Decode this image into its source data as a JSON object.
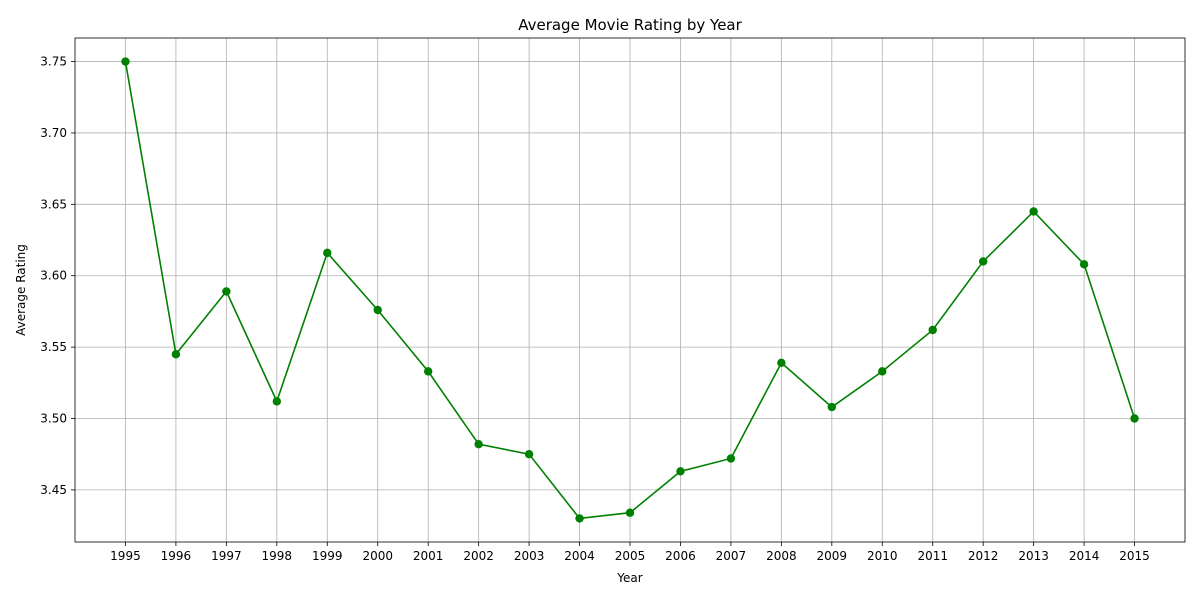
{
  "chart_data": {
    "type": "line",
    "title": "Average Movie Rating by Year",
    "xlabel": "Year",
    "ylabel": "Average Rating",
    "x": [
      1995,
      1996,
      1997,
      1998,
      1999,
      2000,
      2001,
      2002,
      2003,
      2004,
      2005,
      2006,
      2007,
      2008,
      2009,
      2010,
      2011,
      2012,
      2013,
      2014,
      2015
    ],
    "series": [
      {
        "values": [
          3.75,
          3.545,
          3.589,
          3.512,
          3.616,
          3.576,
          3.533,
          3.482,
          3.475,
          3.43,
          3.434,
          3.463,
          3.472,
          3.539,
          3.508,
          3.533,
          3.562,
          3.61,
          3.645,
          3.608,
          3.5
        ],
        "color": "#008000",
        "marker": "circle"
      }
    ],
    "xlim": [
      1994.0,
      2016.0
    ],
    "ylim": [
      3.4135,
      3.7665
    ],
    "yticks": [
      "3.45",
      "3.50",
      "3.55",
      "3.60",
      "3.65",
      "3.70",
      "3.75"
    ],
    "grid": true,
    "legend": "none"
  }
}
